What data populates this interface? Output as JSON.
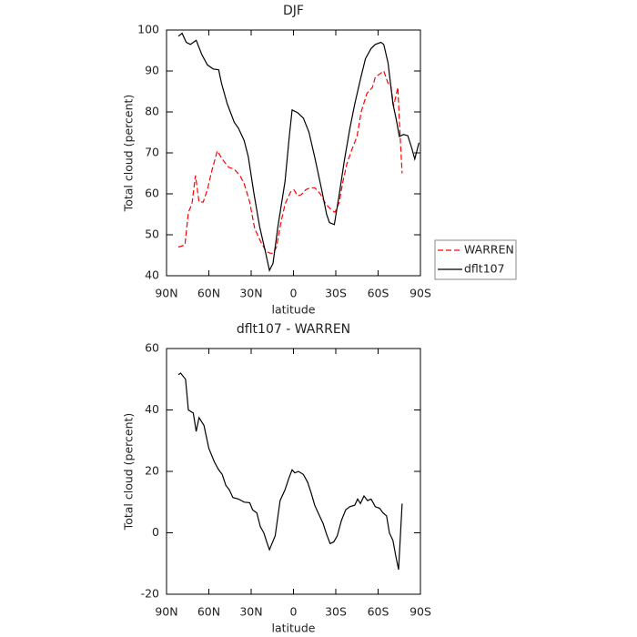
{
  "chart_data": [
    {
      "type": "line",
      "title": "DJF",
      "x_label": "latitude",
      "y_label": "Total cloud (percent)",
      "xlim": [
        90,
        -90
      ],
      "ylim": [
        40,
        100
      ],
      "xticks": [
        {
          "value": 90,
          "label": "90N"
        },
        {
          "value": 60,
          "label": "60N"
        },
        {
          "value": 30,
          "label": "30N"
        },
        0,
        {
          "value": -30,
          "label": "30S"
        },
        {
          "value": -60,
          "label": "60S"
        },
        {
          "value": -90,
          "label": "90S"
        }
      ],
      "yticks": [
        40,
        50,
        60,
        70,
        80,
        90,
        100
      ],
      "legend": "right",
      "series": [
        {
          "name": "WARREN",
          "color": "#ff0000",
          "linestyle": "dashed",
          "x": [
            81.6,
            77,
            74.5,
            72,
            69.5,
            67,
            64,
            61,
            58,
            54,
            50.5,
            46,
            42,
            38,
            35,
            31,
            27.5,
            23.5,
            19.5,
            16.5,
            14.5,
            12,
            9.5,
            6,
            2,
            -0.3,
            -3,
            -5.5,
            -8.7,
            -12,
            -15,
            -19,
            -23,
            -27,
            -29.5,
            -32.5,
            -35,
            -38,
            -41.6,
            -45,
            -48,
            -52,
            -56,
            -58,
            -62,
            -64,
            -67,
            -69,
            -71,
            -74,
            -75,
            -77
          ],
          "values": [
            47,
            47.5,
            55.5,
            57.5,
            64.5,
            58,
            58,
            61,
            65.5,
            70.5,
            68.5,
            66.5,
            66,
            64.5,
            62.5,
            58,
            51.5,
            48.5,
            46,
            45.5,
            45.5,
            47,
            52,
            57.5,
            60.5,
            61,
            59.5,
            59.8,
            61,
            61.5,
            61.5,
            60,
            57.5,
            56,
            55.5,
            58,
            63,
            67.5,
            71,
            74,
            80,
            84.5,
            86,
            88.5,
            89.5,
            90,
            87,
            86.5,
            81.5,
            86,
            78,
            65
          ]
        },
        {
          "name": "dflt107",
          "color": "#000000",
          "linestyle": "solid",
          "x": [
            81.6,
            79,
            76,
            73,
            69,
            65,
            61,
            57,
            53,
            51,
            47,
            42,
            39,
            35,
            32,
            28,
            24,
            20,
            17,
            14.5,
            11,
            6,
            3,
            1,
            -3,
            -7,
            -11,
            -15,
            -20,
            -23.5,
            -25.5,
            -29,
            -32.5,
            -36,
            -40,
            -43.5,
            -47.5,
            -51,
            -55,
            -58,
            -62,
            -64,
            -67,
            -70.5,
            -73,
            -75,
            -78,
            -81,
            -84,
            -86,
            -89
          ],
          "values": [
            98.5,
            99.2,
            97,
            96.5,
            97.5,
            94,
            91.5,
            90.5,
            90.3,
            87,
            82,
            77.5,
            76,
            73,
            69,
            60,
            52,
            46,
            41.3,
            43,
            52,
            63,
            74,
            80.5,
            79.8,
            78.5,
            75,
            69,
            61,
            55,
            53,
            52.5,
            60,
            68,
            76,
            82,
            88,
            93,
            95.5,
            96.5,
            97,
            96.5,
            92,
            82,
            78,
            74,
            74.5,
            74.2,
            71,
            68.5,
            72.5
          ]
        }
      ]
    },
    {
      "type": "line",
      "title": "dflt107 - WARREN",
      "x_label": "latitude",
      "y_label": "Total cloud (percent)",
      "xlim": [
        90,
        -90
      ],
      "ylim": [
        -20,
        60
      ],
      "xticks": [
        {
          "value": 90,
          "label": "90N"
        },
        {
          "value": 60,
          "label": "60N"
        },
        {
          "value": 30,
          "label": "30N"
        },
        0,
        {
          "value": -30,
          "label": "30S"
        },
        {
          "value": -60,
          "label": "60S"
        },
        {
          "value": -90,
          "label": "90S"
        }
      ],
      "yticks": [
        -20,
        0,
        20,
        40,
        60
      ],
      "series": [
        {
          "color": "#000000",
          "linestyle": "solid",
          "x": [
            81.6,
            80,
            76.5,
            74.5,
            71,
            69,
            67,
            63.5,
            60,
            56,
            53,
            50.5,
            48,
            45.5,
            43,
            39,
            35,
            31,
            29,
            26,
            23.5,
            21,
            19,
            17,
            13,
            9.5,
            6,
            3.5,
            1,
            -1,
            -3.5,
            -7,
            -10,
            -12.5,
            -15,
            -18,
            -21,
            -23.5,
            -26,
            -28.5,
            -31,
            -34,
            -37,
            -40,
            -43.5,
            -45.5,
            -47.5,
            -50,
            -52.5,
            -55,
            -58,
            -61,
            -63.5,
            -66,
            -68,
            -70.5,
            -72.5,
            -74.5,
            -77
          ],
          "values": [
            51.5,
            52,
            50,
            40,
            39,
            33,
            37.5,
            35,
            27.5,
            23,
            20.5,
            19,
            15.5,
            14,
            11.5,
            11,
            10,
            9.8,
            7.5,
            6.5,
            2,
            0,
            -3,
            -5.5,
            -1,
            10.5,
            14,
            17.5,
            20.5,
            19.5,
            20,
            19,
            16.5,
            13,
            9,
            6,
            3,
            -0.5,
            -3.5,
            -3,
            -1,
            4,
            7.5,
            8.5,
            9,
            11,
            9.5,
            12,
            10.5,
            11,
            8.5,
            8,
            6.5,
            5.5,
            0,
            -2.5,
            -7.5,
            -12,
            9.5
          ]
        }
      ]
    }
  ]
}
